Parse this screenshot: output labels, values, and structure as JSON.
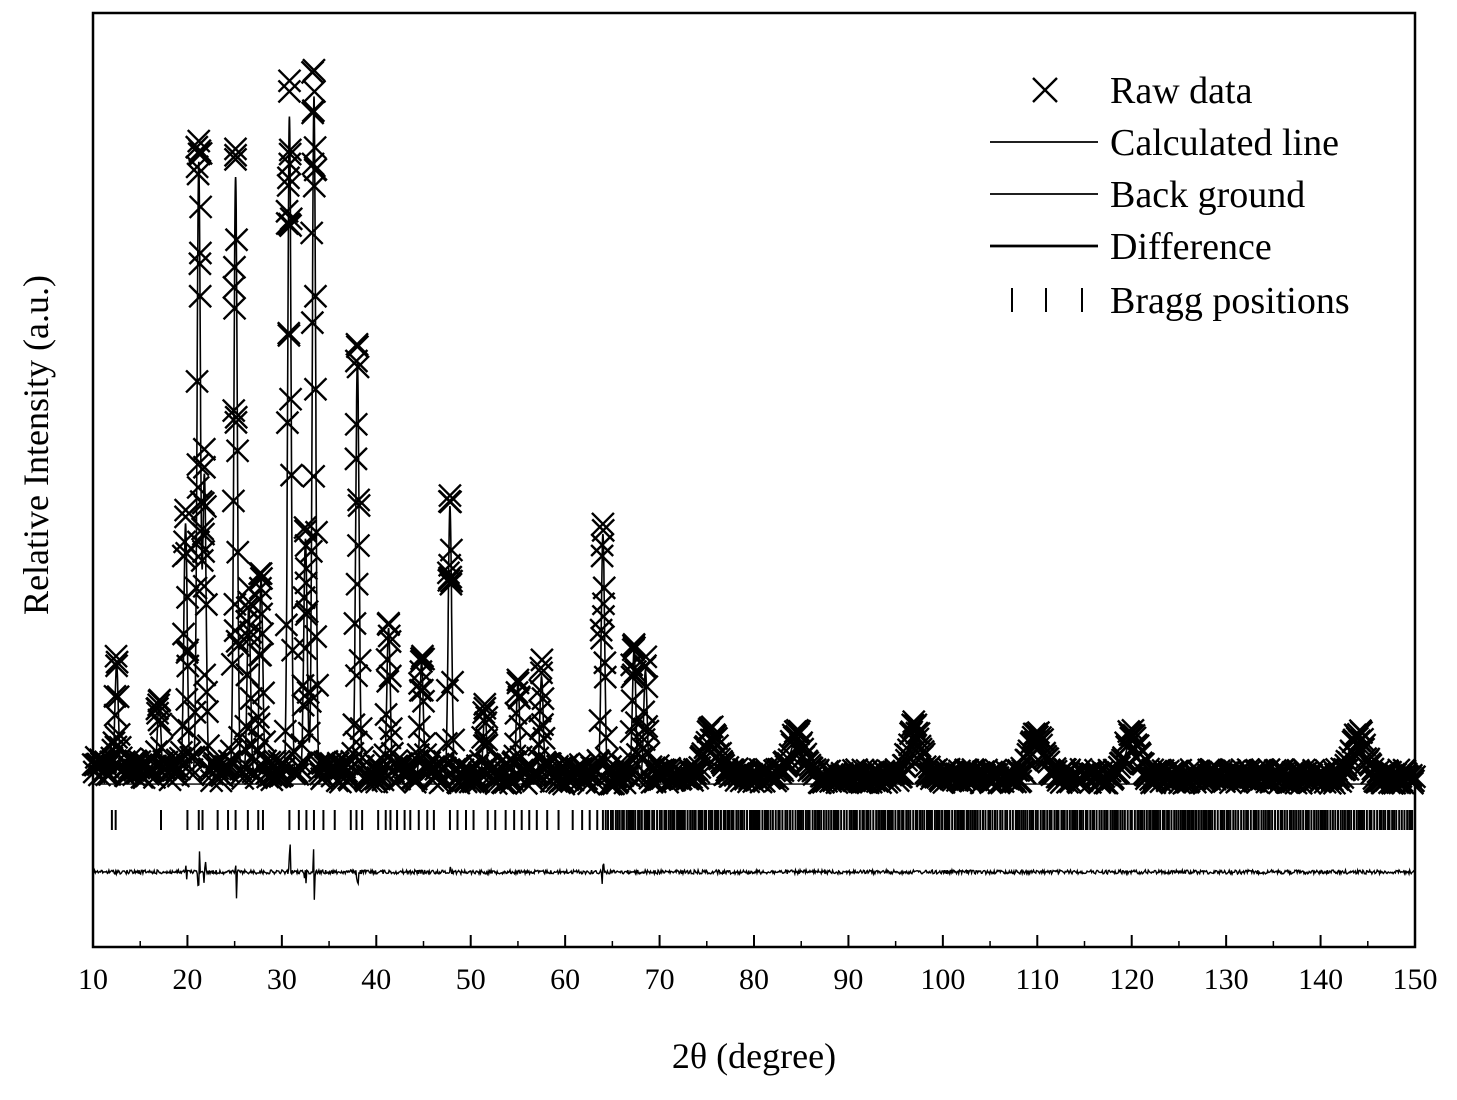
{
  "chart_data": {
    "type": "scatter",
    "title": "",
    "xlabel": "2θ (degree)",
    "ylabel": "Relative Intensity (a.u.)",
    "xlim": [
      10,
      150
    ],
    "xticks": [
      "10",
      "20",
      "30",
      "40",
      "50",
      "60",
      "70",
      "80",
      "90",
      "100",
      "110",
      "120",
      "130",
      "140",
      "150"
    ],
    "yticks_shown": false,
    "grid": false,
    "legend_position": "top-right",
    "legend": [
      {
        "label": "Raw data",
        "marker": "x"
      },
      {
        "label": "Calculated line",
        "marker": "line"
      },
      {
        "label": "Back ground",
        "marker": "line"
      },
      {
        "label": "Difference",
        "marker": "line"
      },
      {
        "label": "Bragg positions",
        "marker": "ticks"
      }
    ],
    "background_level": 0.035,
    "peaks": [
      {
        "x": 12.5,
        "y": 0.16
      },
      {
        "x": 17.0,
        "y": 0.11
      },
      {
        "x": 19.8,
        "y": 0.37
      },
      {
        "x": 21.2,
        "y": 0.9
      },
      {
        "x": 21.8,
        "y": 0.44
      },
      {
        "x": 25.1,
        "y": 0.88
      },
      {
        "x": 26.5,
        "y": 0.25
      },
      {
        "x": 27.8,
        "y": 0.29
      },
      {
        "x": 30.8,
        "y": 0.97
      },
      {
        "x": 32.5,
        "y": 0.35
      },
      {
        "x": 33.4,
        "y": 1.0
      },
      {
        "x": 38.0,
        "y": 0.61
      },
      {
        "x": 41.3,
        "y": 0.22
      },
      {
        "x": 44.8,
        "y": 0.17
      },
      {
        "x": 47.8,
        "y": 0.4
      },
      {
        "x": 51.5,
        "y": 0.1
      },
      {
        "x": 55.0,
        "y": 0.14
      },
      {
        "x": 57.5,
        "y": 0.15
      },
      {
        "x": 64.0,
        "y": 0.36
      },
      {
        "x": 67.3,
        "y": 0.19
      },
      {
        "x": 68.5,
        "y": 0.16
      },
      {
        "x": 75.5,
        "y": 0.06
      },
      {
        "x": 84.5,
        "y": 0.06
      },
      {
        "x": 97.0,
        "y": 0.07
      },
      {
        "x": 110.0,
        "y": 0.06
      },
      {
        "x": 120.0,
        "y": 0.06
      },
      {
        "x": 144.0,
        "y": 0.06
      }
    ],
    "bragg_positions": [
      12.0,
      12.4,
      17.2,
      20.0,
      21.2,
      21.6,
      23.2,
      24.3,
      25.1,
      26.4,
      27.5,
      28.0,
      30.8,
      31.8,
      32.6,
      33.4,
      34.4,
      35.6,
      37.3,
      37.9,
      38.5,
      40.2,
      41.0,
      41.5,
      42.2,
      43.0,
      43.6,
      44.5,
      45.4,
      46.1,
      47.8,
      48.6,
      49.5,
      50.3,
      51.8,
      52.6,
      53.7,
      54.6,
      55.4,
      56.2,
      57.0,
      58.1,
      59.3,
      60.8,
      61.8,
      62.6,
      63.4,
      64.0
    ]
  }
}
